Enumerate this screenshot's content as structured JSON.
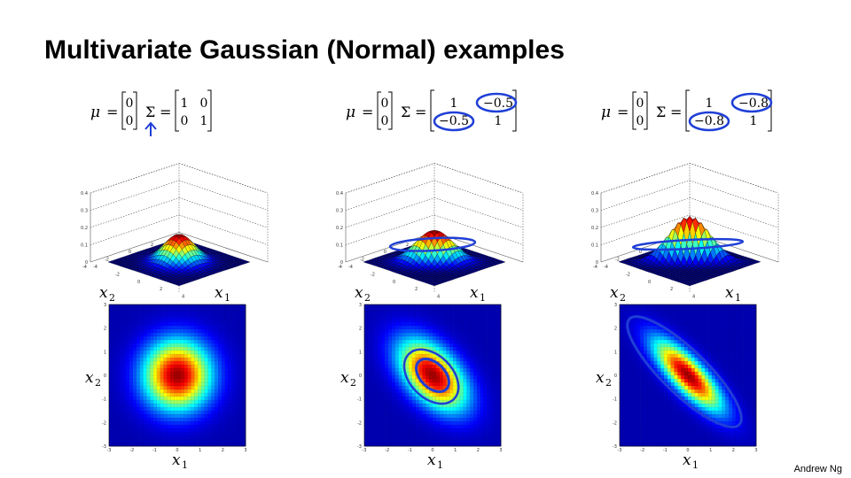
{
  "slide": {
    "title": "Multivariate Gaussian (Normal) examples",
    "credit": "Andrew Ng"
  },
  "labels": {
    "mu": "μ",
    "sigma": "Σ",
    "equals": "=",
    "x1": "x",
    "x2": "x",
    "sub1": "1",
    "sub2": "2"
  },
  "colors": {
    "annotation": "#1f3fd6",
    "axis": "#333333"
  },
  "examples": [
    {
      "mu": [
        "0",
        "0"
      ],
      "sigma": [
        [
          "1",
          "0"
        ],
        [
          "0",
          "1"
        ]
      ],
      "rho": 0,
      "peak": 0.16,
      "z_ticks": [
        "0",
        "0.1",
        "0.2",
        "0.3",
        "0.4"
      ],
      "xy_ticks": [
        "-4",
        "-2",
        "0",
        "2",
        "4"
      ],
      "contour_ticks": [
        "-3",
        "-2",
        "-1",
        "0",
        "1",
        "2",
        "3"
      ],
      "annotation": "arrow-under-sigma"
    },
    {
      "mu": [
        "0",
        "0"
      ],
      "sigma": [
        [
          "1",
          "−0.5"
        ],
        [
          "−0.5",
          "1"
        ]
      ],
      "rho": -0.5,
      "peak": 0.18,
      "z_ticks": [
        "0",
        "0.1",
        "0.2",
        "0.3",
        "0.4"
      ],
      "xy_ticks": [
        "-4",
        "-2",
        "0",
        "2",
        "4"
      ],
      "contour_ticks": [
        "-3",
        "-2",
        "-1",
        "0",
        "1",
        "2",
        "3"
      ],
      "annotation": "circled-off-diagonals"
    },
    {
      "mu": [
        "0",
        "0"
      ],
      "sigma": [
        [
          "1",
          "−0.8"
        ],
        [
          "−0.8",
          "1"
        ]
      ],
      "rho": -0.8,
      "peak": 0.27,
      "z_ticks": [
        "0",
        "0.1",
        "0.2",
        "0.3",
        "0.4"
      ],
      "xy_ticks": [
        "-4",
        "-2",
        "0",
        "2",
        "4"
      ],
      "contour_ticks": [
        "-3",
        "-2",
        "-1",
        "0",
        "1",
        "2",
        "3"
      ],
      "annotation": "circled-off-diagonals"
    }
  ]
}
